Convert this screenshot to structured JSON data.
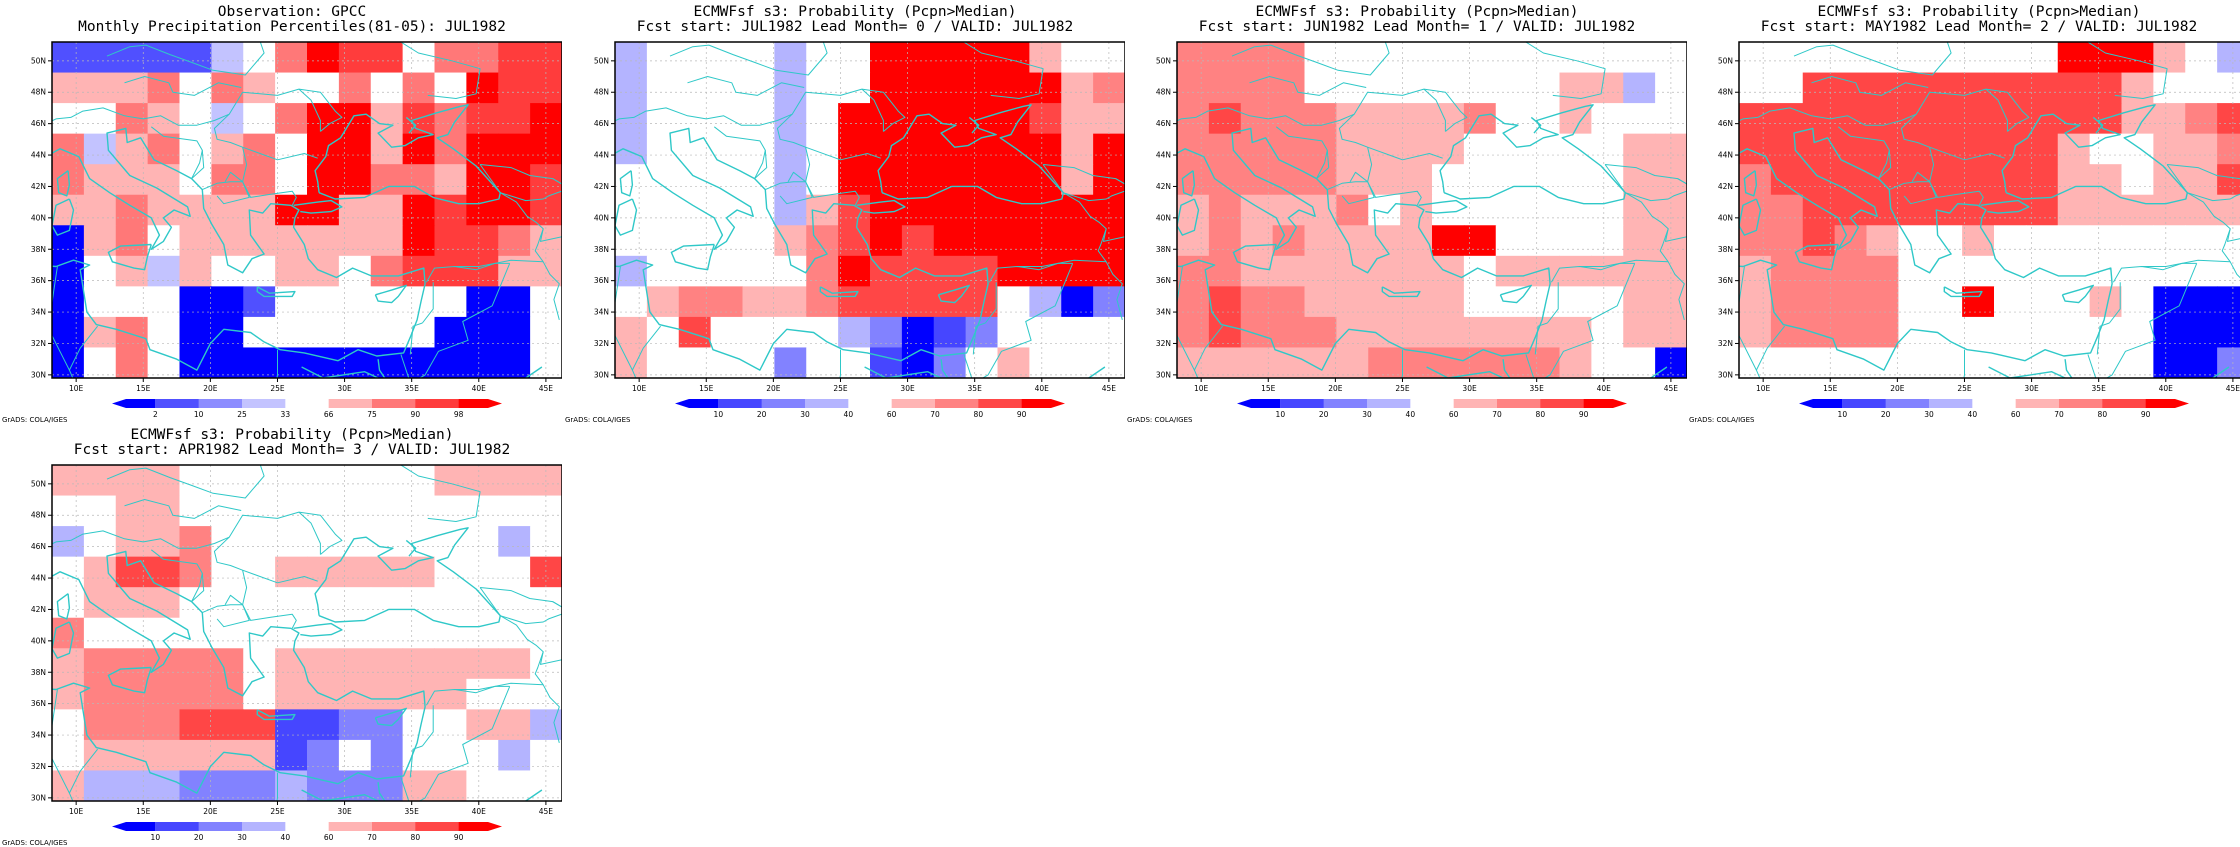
{
  "credit": "GrADS: COLA/IGES",
  "lon_labels": [
    "10E",
    "15E",
    "20E",
    "25E",
    "30E",
    "35E",
    "40E",
    "45E"
  ],
  "lat_labels": [
    "30N",
    "32N",
    "34N",
    "36N",
    "38N",
    "40N",
    "42N",
    "44N",
    "46N",
    "48N",
    "50N"
  ],
  "palettes": {
    "obs": {
      "labels": [
        "2",
        "10",
        "25",
        "33",
        "66",
        "75",
        "90",
        "98"
      ],
      "colors": [
        "#0000ff",
        "#5050ff",
        "#8c8cff",
        "#c3c3ff",
        "#ffffff",
        "#ffb4b4",
        "#ff7878",
        "#ff3c3c",
        "#ff0000"
      ]
    },
    "fcst": {
      "labels": [
        "10",
        "20",
        "30",
        "40",
        "60",
        "70",
        "80",
        "90"
      ],
      "colors": [
        "#0000ff",
        "#4646ff",
        "#8282ff",
        "#b4b4ff",
        "#ffffff",
        "#ffb4b4",
        "#ff8282",
        "#ff4646",
        "#ff0000"
      ]
    }
  },
  "chart_data": [
    {
      "type": "heatmap",
      "title": "Observation: GPCC",
      "subtitle": "Monthly Precipitation Percentiles(81-05): JUL1982",
      "palette": "obs",
      "rows_north_to_south": [
        "1111134687746677",
        "5556465446464877",
        "4465434688576778",
        "6356456488586888",
        "6555466488665887",
        "5565555885587887",
        "0564555555587765",
        "0453544554677755",
        "0444001444444004",
        "0564004444440004",
        "0464000000000004"
      ]
    },
    {
      "type": "heatmap",
      "title": "ECMWFsf s3: Probability (Pcpn>Median)",
      "subtitle": "Fcst start: JUL1982   Lead Month= 0 / VALID: JUL1982",
      "palette": "fcst",
      "rows_north_to_south": [
        "3444434488888544",
        "3444434488888856",
        "3444434888888755",
        "3444434888888858",
        "4444434888888858",
        "4444435788888888",
        "4444456787888888",
        "3444446877778888",
        "4566556777774302",
        "5474444320124444",
        "5444424410245444"
      ]
    },
    {
      "type": "heatmap",
      "title": "ECMWFsf s3: Probability (Pcpn>Median)",
      "subtitle": "Fcst start: JUN1982   Lead Month= 1 / VALID: JUL1982",
      "palette": "fcst",
      "rows_north_to_south": [
        "6666444444444444",
        "6666444444445534",
        "6766655556445444",
        "6666655554444455",
        "6666655544444455",
        "5655564544444455",
        "5656555588444455",
        "6655555554555555",
        "6766555554444455",
        "6766655555555455",
        "5555556666665440"
      ]
    },
    {
      "type": "heatmap",
      "title": "ECMWFsf s3: Probability (Pcpn>Median)",
      "subtitle": "Fcst start: MAY1982   Lead Month= 2 / VALID: JUL1982",
      "palette": "fcst",
      "rows_north_to_south": [
        "4444444444888543",
        "4477777777775444",
        "7777777777775567",
        "7777777777544556",
        "6777777777554557",
        "6677777777555555",
        "6676544544444444",
        "5666644444444444",
        "5666644844454000",
        "5666644444444000",
        "4444444444444002"
      ]
    },
    {
      "type": "heatmap",
      "title": "ECMWFsf s3: Probability (Pcpn>Median)",
      "subtitle": "Fcst start: APR1982   Lead Month= 3 / VALID: JUL1982",
      "palette": "fcst",
      "rows_north_to_south": [
        "5555444444445555",
        "4455444444444444",
        "3455644444444434",
        "4577644555554447",
        "4555444444444444",
        "6444444444444444",
        "5666664555555554",
        "5666664555555444",
        "4666777112244553",
        "4555555124244434",
        "5333222322255444"
      ]
    }
  ],
  "panels": [
    {
      "title1": "Observation: GPCC",
      "title2": "Monthly Precipitation Percentiles(81-05): JUL1982"
    },
    {
      "title1": "ECMWFsf s3: Probability (Pcpn>Median)",
      "title2": "Fcst start: JUL1982   Lead Month= 0 / VALID: JUL1982"
    },
    {
      "title1": "ECMWFsf s3: Probability (Pcpn>Median)",
      "title2": "Fcst start: JUN1982   Lead Month= 1 / VALID: JUL1982"
    },
    {
      "title1": "ECMWFsf s3: Probability (Pcpn>Median)",
      "title2": "Fcst start: MAY1982   Lead Month= 2 / VALID: JUL1982"
    },
    {
      "title1": "ECMWFsf s3: Probability (Pcpn>Median)",
      "title2": "Fcst start: APR1982   Lead Month= 3 / VALID: JUL1982"
    }
  ]
}
